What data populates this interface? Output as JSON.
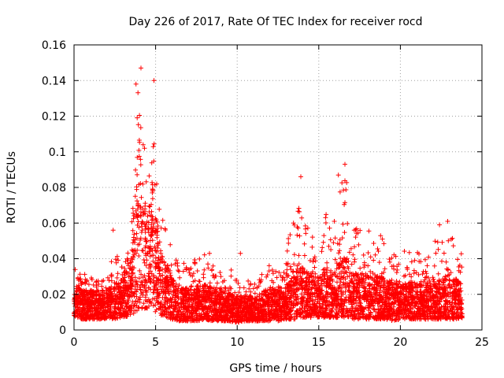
{
  "chart_data": {
    "type": "scatter",
    "title": "Day 226 of 2017, Rate Of TEC Index for receiver rocd",
    "xlabel": "GPS time / hours",
    "ylabel": "ROTI / TECUs",
    "xlim": [
      0,
      25
    ],
    "ylim": [
      0,
      0.16
    ],
    "x_ticks": [
      0,
      5,
      10,
      15,
      20,
      25
    ],
    "y_ticks": [
      0,
      0.02,
      0.04,
      0.06,
      0.08,
      0.1,
      0.12,
      0.14,
      0.16
    ],
    "x_tick_labels": [
      "0",
      "5",
      "10",
      "15",
      "20",
      "25"
    ],
    "y_tick_labels": [
      "0",
      "0.02",
      "0.04",
      "0.06",
      "0.08",
      "0.1",
      "0.12",
      "0.14",
      "0.16"
    ],
    "grid": true,
    "marker": "+",
    "color": "#ff0000",
    "x_range_of_data": [
      0,
      23.8
    ],
    "envelope": {
      "x": [
        0,
        0.5,
        1,
        1.5,
        2,
        2.5,
        3,
        3.5,
        3.8,
        4,
        4.2,
        4.5,
        4.8,
        5,
        5.3,
        5.6,
        6,
        6.5,
        7,
        7.5,
        8,
        8.5,
        9,
        9.5,
        10,
        10.5,
        11,
        11.5,
        12,
        12.5,
        13,
        13.5,
        13.8,
        14,
        14.5,
        15,
        15.5,
        16,
        16.3,
        16.6,
        17,
        17.5,
        18,
        18.5,
        19,
        19.5,
        20,
        20.5,
        21,
        21.5,
        22,
        22.5,
        23,
        23.8
      ],
      "min": [
        0.008,
        0.006,
        0.006,
        0.006,
        0.006,
        0.006,
        0.007,
        0.008,
        0.01,
        0.012,
        0.012,
        0.012,
        0.012,
        0.01,
        0.008,
        0.007,
        0.006,
        0.005,
        0.005,
        0.005,
        0.006,
        0.005,
        0.005,
        0.005,
        0.004,
        0.005,
        0.005,
        0.005,
        0.005,
        0.005,
        0.006,
        0.006,
        0.007,
        0.007,
        0.007,
        0.007,
        0.007,
        0.007,
        0.007,
        0.007,
        0.006,
        0.006,
        0.006,
        0.006,
        0.006,
        0.005,
        0.006,
        0.006,
        0.006,
        0.006,
        0.006,
        0.006,
        0.006,
        0.006
      ],
      "max": [
        0.035,
        0.032,
        0.03,
        0.028,
        0.03,
        0.045,
        0.035,
        0.05,
        0.135,
        0.147,
        0.12,
        0.1,
        0.14,
        0.09,
        0.07,
        0.06,
        0.045,
        0.04,
        0.038,
        0.04,
        0.043,
        0.04,
        0.033,
        0.035,
        0.03,
        0.03,
        0.028,
        0.035,
        0.04,
        0.035,
        0.05,
        0.065,
        0.086,
        0.07,
        0.055,
        0.05,
        0.07,
        0.06,
        0.087,
        0.093,
        0.055,
        0.06,
        0.062,
        0.058,
        0.05,
        0.045,
        0.04,
        0.05,
        0.045,
        0.04,
        0.05,
        0.055,
        0.06,
        0.045
      ],
      "typical": [
        0.016,
        0.014,
        0.014,
        0.014,
        0.014,
        0.016,
        0.018,
        0.025,
        0.055,
        0.07,
        0.045,
        0.04,
        0.055,
        0.04,
        0.03,
        0.025,
        0.018,
        0.015,
        0.015,
        0.015,
        0.016,
        0.015,
        0.014,
        0.013,
        0.012,
        0.012,
        0.012,
        0.013,
        0.015,
        0.014,
        0.016,
        0.02,
        0.025,
        0.022,
        0.02,
        0.02,
        0.022,
        0.02,
        0.025,
        0.025,
        0.02,
        0.02,
        0.02,
        0.02,
        0.018,
        0.017,
        0.016,
        0.017,
        0.017,
        0.016,
        0.018,
        0.018,
        0.02,
        0.016
      ]
    },
    "highlighted_points": [
      {
        "x": 4.1,
        "y": 0.147
      },
      {
        "x": 3.8,
        "y": 0.138
      },
      {
        "x": 4.9,
        "y": 0.14
      },
      {
        "x": 2.4,
        "y": 0.056
      },
      {
        "x": 10.2,
        "y": 0.043
      },
      {
        "x": 13.9,
        "y": 0.086
      },
      {
        "x": 16.2,
        "y": 0.087
      },
      {
        "x": 16.6,
        "y": 0.093
      },
      {
        "x": 22.4,
        "y": 0.059
      },
      {
        "x": 22.9,
        "y": 0.061
      },
      {
        "x": 8.3,
        "y": 0.043
      }
    ]
  }
}
